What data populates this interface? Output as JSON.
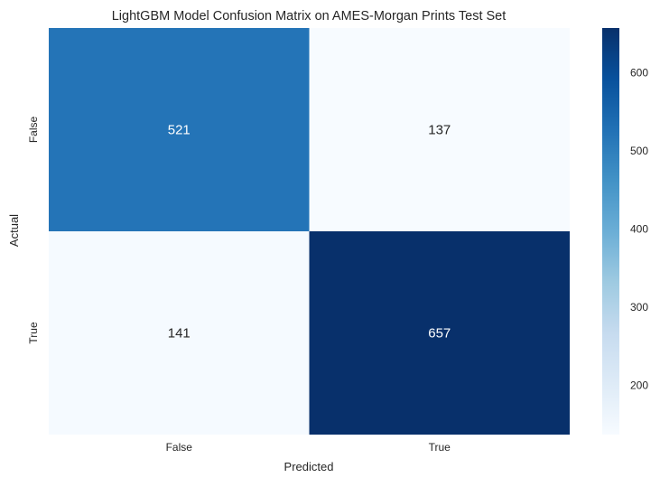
{
  "chart_data": {
    "type": "heatmap",
    "title": "LightGBM Model Confusion Matrix on AMES-Morgan Prints Test Set",
    "xlabel": "Predicted",
    "ylabel": "Actual",
    "x_categories": [
      "False",
      "True"
    ],
    "y_categories": [
      "False",
      "True"
    ],
    "values": [
      [
        521,
        137
      ],
      [
        141,
        657
      ]
    ],
    "colormap": "Blues",
    "colorbar": {
      "min": 137,
      "max": 657,
      "ticks": [
        200,
        300,
        400,
        500,
        600
      ],
      "low_color": "#f7fbff",
      "high_color": "#08306b"
    },
    "annotation_colors": {
      "on_dark": "#ffffff",
      "on_light": "#262626"
    },
    "grid": false
  }
}
